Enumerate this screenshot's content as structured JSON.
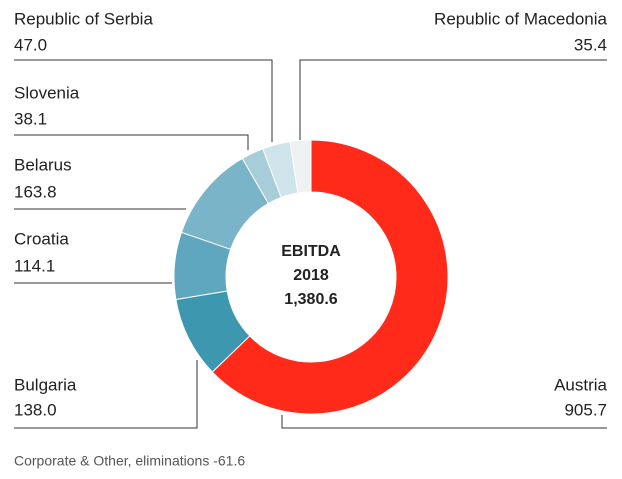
{
  "chart_data": {
    "type": "donut",
    "categories": [
      "Austria",
      "Bulgaria",
      "Croatia",
      "Belarus",
      "Slovenia",
      "Republic of Serbia",
      "Republic of Macedonia"
    ],
    "values": [
      905.7,
      138.0,
      114.1,
      163.8,
      38.1,
      47.0,
      35.4
    ],
    "value_labels": [
      "905.7",
      "138.0",
      "114.1",
      "163.8",
      "38.1",
      "47.0",
      "35.4"
    ],
    "colors": [
      "#ff2a1a",
      "#3d97ae",
      "#5fa7bf",
      "#7ab4c8",
      "#a7cdd9",
      "#cfe3ea",
      "#eef1f2"
    ],
    "center_text": [
      "EBITDA",
      "2018",
      "1,380.6"
    ],
    "footnote": "Corporate & Other, eliminations -61.6"
  }
}
